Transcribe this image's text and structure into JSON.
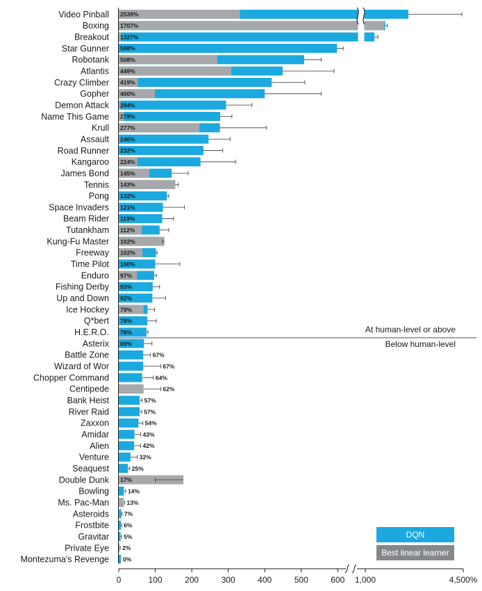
{
  "chart_data": {
    "type": "bar",
    "orientation": "horizontal",
    "categories": [
      "Video Pinball",
      "Boxing",
      "Breakout",
      "Star Gunner",
      "Robotank",
      "Atlantis",
      "Crazy Climber",
      "Gopher",
      "Demon Attack",
      "Name This Game",
      "Krull",
      "Assault",
      "Road Runner",
      "Kangaroo",
      "James Bond",
      "Tennis",
      "Pong",
      "Space Invaders",
      "Beam Rider",
      "Tutankham",
      "Kung-Fu Master",
      "Freeway",
      "Time Pilot",
      "Enduro",
      "Fishing Derby",
      "Up and Down",
      "Ice Hockey",
      "Q*bert",
      "H.E.R.O.",
      "Asterix",
      "Battle Zone",
      "Wizard of Wor",
      "Chopper Command",
      "Centipede",
      "Bank Heist",
      "River Raid",
      "Zaxxon",
      "Amidar",
      "Alien",
      "Venture",
      "Seaquest",
      "Double Dunk",
      "Bowling",
      "Ms. Pac-Man",
      "Asteroids",
      "Frostbite",
      "Gravitar",
      "Private Eye",
      "Montezuma's Revenge"
    ],
    "value_labels": [
      "2539%",
      "1707%",
      "1327%",
      "598%",
      "508%",
      "449%",
      "419%",
      "400%",
      "294%",
      "278%",
      "277%",
      "246%",
      "232%",
      "224%",
      "145%",
      "143%",
      "132%",
      "121%",
      "119%",
      "112%",
      "102%",
      "102%",
      "100%",
      "97%",
      "93%",
      "92%",
      "79%",
      "78%",
      "76%",
      "69%",
      "67%",
      "67%",
      "64%",
      "62%",
      "57%",
      "57%",
      "54%",
      "43%",
      "42%",
      "32%",
      "25%",
      "17%",
      "14%",
      "13%",
      "7%",
      "6%",
      "5%",
      "2%",
      "0%"
    ],
    "series": [
      {
        "name": "DQN",
        "color": "#1ba9e0",
        "values": [
          2539,
          1707,
          1327,
          598,
          508,
          449,
          419,
          400,
          294,
          278,
          277,
          246,
          232,
          224,
          145,
          143,
          132,
          121,
          119,
          112,
          102,
          102,
          100,
          97,
          93,
          92,
          79,
          78,
          76,
          69,
          67,
          67,
          64,
          62,
          57,
          57,
          54,
          43,
          42,
          32,
          25,
          17,
          14,
          13,
          7,
          6,
          5,
          2,
          0
        ],
        "error_max": [
          4450,
          1790,
          1450,
          615,
          555,
          590,
          510,
          555,
          365,
          310,
          405,
          305,
          285,
          320,
          190,
          163,
          137,
          180,
          150,
          137,
          120,
          105,
          167,
          103,
          112,
          128,
          98,
          103,
          80,
          91,
          87,
          115,
          95,
          115,
          64,
          63,
          66,
          60,
          60,
          51,
          30,
          100,
          19,
          16,
          9,
          8,
          8,
          4,
          0
        ]
      },
      {
        "name": "Best linear learner",
        "color": "#a6a8ab",
        "values": [
          332,
          1670,
          6,
          0,
          270,
          308,
          52,
          99,
          5,
          14,
          221,
          2,
          1,
          51,
          84,
          155,
          1,
          2,
          1,
          63,
          125,
          65,
          0,
          50,
          0,
          0,
          68,
          1,
          1,
          0,
          0,
          0,
          0,
          68,
          0,
          0,
          0,
          0,
          0,
          0,
          0,
          177,
          0,
          14,
          1,
          0,
          0,
          1,
          0
        ]
      }
    ],
    "x_ticks": [
      "0",
      "100",
      "200",
      "300",
      "400",
      "500",
      "600",
      "1,000",
      "4,500%"
    ],
    "x_break": {
      "between": [
        "600",
        "1,000"
      ]
    },
    "threshold": {
      "after_category": "H.E.R.O.",
      "label_above": "At human-level or above",
      "label_below": "Below human-level"
    },
    "legend": {
      "position": "bottom-right",
      "entries": [
        "DQN",
        "Best linear learner"
      ]
    },
    "title": "",
    "xlabel": "",
    "ylabel": ""
  }
}
